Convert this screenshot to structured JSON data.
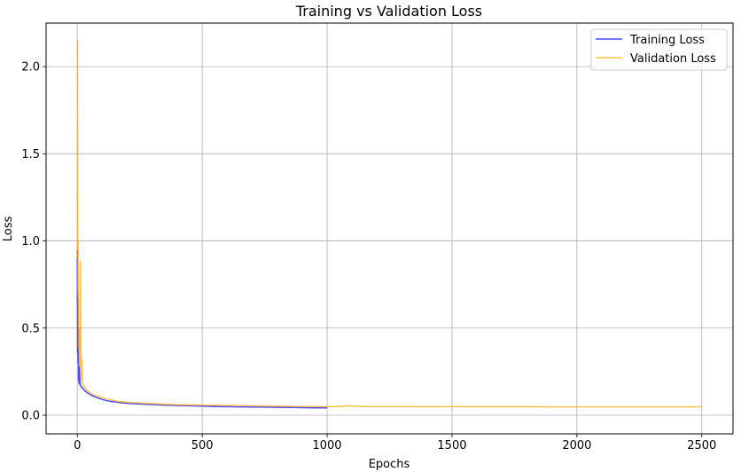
{
  "chart_data": {
    "type": "line",
    "title": "Training vs Validation Loss",
    "xlabel": "Epochs",
    "ylabel": "Loss",
    "xlim": [
      -125,
      2625
    ],
    "ylim": [
      -0.107,
      2.25
    ],
    "xticks": [
      0,
      500,
      1000,
      1500,
      2000,
      2500
    ],
    "yticks": [
      0.0,
      0.5,
      1.0,
      1.5,
      2.0
    ],
    "xtick_labels": [
      "0",
      "500",
      "1000",
      "1500",
      "2000",
      "2500"
    ],
    "ytick_labels": [
      "0.0",
      "0.5",
      "1.0",
      "1.5",
      "2.0"
    ],
    "grid": true,
    "legend_position": "top-right",
    "series": [
      {
        "name": "Training Loss",
        "color": "#0000ff",
        "x": [
          0,
          1,
          2,
          3,
          4,
          5,
          6,
          7,
          8,
          10,
          12,
          15,
          20,
          25,
          30,
          40,
          50,
          60,
          80,
          100,
          130,
          160,
          200,
          250,
          300,
          350,
          400,
          450,
          500,
          550,
          600,
          650,
          700,
          750,
          800,
          850,
          900,
          950,
          1000
        ],
        "y": [
          0.95,
          0.36,
          0.67,
          0.3,
          0.5,
          0.2,
          0.26,
          0.18,
          0.28,
          0.2,
          0.17,
          0.165,
          0.155,
          0.148,
          0.14,
          0.128,
          0.12,
          0.112,
          0.1,
          0.09,
          0.08,
          0.074,
          0.068,
          0.064,
          0.061,
          0.058,
          0.056,
          0.054,
          0.052,
          0.05,
          0.049,
          0.048,
          0.047,
          0.046,
          0.045,
          0.044,
          0.043,
          0.042,
          0.042
        ]
      },
      {
        "name": "Validation Loss",
        "color": "#ffa500",
        "x": [
          0,
          1,
          2,
          3,
          4,
          5,
          6,
          8,
          10,
          12,
          15,
          18,
          20,
          25,
          30,
          35,
          40,
          50,
          60,
          80,
          100,
          130,
          160,
          200,
          250,
          300,
          350,
          400,
          500,
          600,
          700,
          800,
          900,
          1000,
          1050,
          1080,
          1100,
          1150,
          1200,
          1300,
          1400,
          1500,
          1600,
          1700,
          1800,
          1900,
          2000,
          2100,
          2200,
          2300,
          2400,
          2500
        ],
        "y": [
          0.9,
          2.15,
          0.7,
          1.0,
          0.45,
          0.38,
          0.5,
          0.3,
          0.28,
          0.88,
          0.2,
          0.32,
          0.18,
          0.17,
          0.155,
          0.15,
          0.14,
          0.13,
          0.12,
          0.11,
          0.1,
          0.09,
          0.08,
          0.074,
          0.07,
          0.066,
          0.063,
          0.06,
          0.058,
          0.056,
          0.054,
          0.052,
          0.05,
          0.05,
          0.05,
          0.055,
          0.052,
          0.05,
          0.05,
          0.05,
          0.049,
          0.05,
          0.049,
          0.049,
          0.049,
          0.048,
          0.048,
          0.048,
          0.048,
          0.048,
          0.048,
          0.048
        ]
      }
    ]
  }
}
